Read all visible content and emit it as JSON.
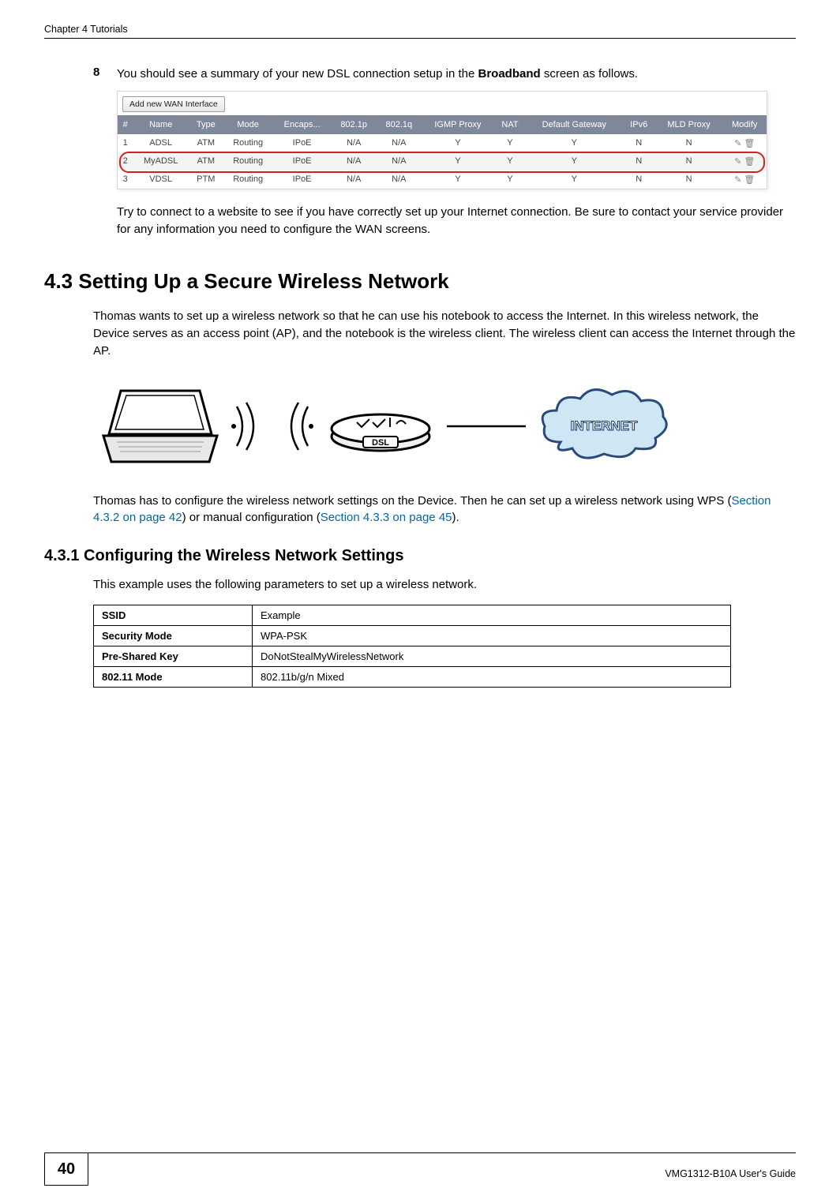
{
  "header": {
    "left": "Chapter 4 Tutorials",
    "right": ""
  },
  "step8": {
    "num": "8",
    "text_pre": "You should see a summary of your new DSL connection setup in the ",
    "bold": "Broadband",
    "text_post": " screen as follows."
  },
  "wan_screenshot": {
    "add_btn": "Add new WAN Interface",
    "columns": [
      "#",
      "Name",
      "Type",
      "Mode",
      "Encaps...",
      "802.1p",
      "802.1q",
      "IGMP Proxy",
      "NAT",
      "Default Gateway",
      "IPv6",
      "MLD Proxy",
      "Modify"
    ],
    "rows": [
      {
        "cells": [
          "1",
          "ADSL",
          "ATM",
          "Routing",
          "IPoE",
          "N/A",
          "N/A",
          "Y",
          "Y",
          "Y",
          "N",
          "N"
        ],
        "highlight": false
      },
      {
        "cells": [
          "2",
          "MyADSL",
          "ATM",
          "Routing",
          "IPoE",
          "N/A",
          "N/A",
          "Y",
          "Y",
          "Y",
          "N",
          "N"
        ],
        "highlight": true
      },
      {
        "cells": [
          "3",
          "VDSL",
          "PTM",
          "Routing",
          "IPoE",
          "N/A",
          "N/A",
          "Y",
          "Y",
          "Y",
          "N",
          "N"
        ],
        "highlight": false
      }
    ]
  },
  "try_para": "Try to connect to a website to see if you have correctly set up your Internet connection. Be sure to contact your service provider for any information you need to configure the WAN screens.",
  "sec43": {
    "title": "4.3  Setting Up a Secure Wireless Network",
    "p1": "Thomas wants to set up a wireless network so that he can use his notebook to access the Internet. In this wireless network, the Device serves as an access point (AP), and the notebook is the wireless client. The wireless client can access the Internet through the AP.",
    "p2_pre": "Thomas has to configure the wireless network settings on the Device. Then he can set up a wireless network using WPS (",
    "p2_link1": "Section 4.3.2 on page 42",
    "p2_mid": ") or manual configuration (",
    "p2_link2": "Section 4.3.3 on page 45",
    "p2_post": ")."
  },
  "sec431": {
    "title": "4.3.1  Configuring the Wireless Network Settings",
    "intro": "This example uses the following parameters to set up a wireless network.",
    "params": [
      {
        "k": "SSID",
        "v": "Example"
      },
      {
        "k": "Security Mode",
        "v": "WPA-PSK"
      },
      {
        "k": "Pre-Shared Key",
        "v": "DoNotStealMyWirelessNetwork"
      },
      {
        "k": "802.11 Mode",
        "v": "802.11b/g/n Mixed"
      }
    ]
  },
  "diagram": {
    "internet_label": "INTERNET",
    "dsl_label": "DSL"
  },
  "footer": {
    "page": "40",
    "guide": "VMG1312-B10A User's Guide"
  },
  "colors": {
    "wan_header_bg": "#7f879a",
    "link": "#0066aa",
    "highlight_border": "#d32020"
  }
}
